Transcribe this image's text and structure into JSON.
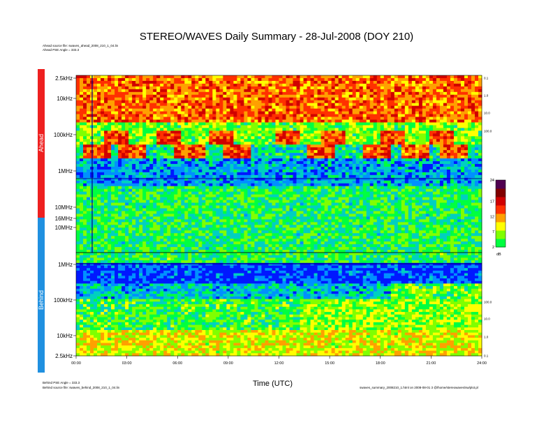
{
  "title": "STEREO/WAVES Daily Summary - 28-Jul-2008 (DOY 210)",
  "header_notes": {
    "ahead_source": "Ahead source file: swaves_ahead_2008_210_1_04.lin",
    "ahead_pse": "Ahead PSE Angle = 333.3"
  },
  "footer_notes": {
    "behind_pse": "Behind PSE Angle = 333.3",
    "behind_source": "Behind source file: swaves_behind_2008_210_1_04.lin",
    "generator": "swaves_summary_2008210_1.html on 2008-08-01 3 @/home/stereowaves/sw/plot.pl"
  },
  "chart_data": {
    "type": "heatmap",
    "title": "STEREO/WAVES Daily Summary - 28-Jul-2008 (DOY 210)",
    "xlabel": "Time (UTC)",
    "x_ticks": [
      "00:00",
      "03:00",
      "06:00",
      "09:00",
      "12:00",
      "15:00",
      "18:00",
      "21:00",
      "24:00"
    ],
    "xlim": [
      "00:00",
      "24:00"
    ],
    "panels": [
      {
        "name": "Ahead",
        "color": "#ee2020",
        "y_ticks": [
          "2.5kHz",
          "10kHz",
          "100kHz",
          "1MHz",
          "10MHz",
          "16MHz"
        ],
        "right_ticks": [
          "0.1",
          "1.0",
          "10.0",
          "100.0"
        ],
        "frequency_order": "increasing downward",
        "dominant_levels": [
          {
            "band": "2.5kHz–50kHz",
            "level": "high (red/orange)"
          },
          {
            "band": "100kHz–400kHz",
            "level": "moderate, recurring red bursts"
          },
          {
            "band": "1MHz–16MHz",
            "level": "low (blue/green)"
          }
        ]
      },
      {
        "name": "Behind",
        "color": "#2090e0",
        "y_ticks": [
          "10MHz",
          "1MHz",
          "100kHz",
          "10kHz",
          "2.5kHz"
        ],
        "right_ticks": [
          "100.0",
          "10.0",
          "1.0",
          "0.1"
        ],
        "frequency_order": "decreasing downward",
        "dominant_levels": [
          {
            "band": "1MHz–16MHz",
            "level": "low (green/yellow)"
          },
          {
            "band": "100kHz–1MHz",
            "level": "low (blue)"
          },
          {
            "band": "2.5kHz–100kHz",
            "level": "mixed green/yellow/red"
          }
        ]
      }
    ],
    "colorbar": {
      "unit": "dB",
      "ticks": [
        2,
        7,
        12,
        17,
        24
      ],
      "range": [
        2,
        24
      ],
      "colors": [
        "#00ff40",
        "#80ff00",
        "#ffff00",
        "#ffa000",
        "#ff3000",
        "#d00000",
        "#800000",
        "#500050"
      ]
    }
  }
}
